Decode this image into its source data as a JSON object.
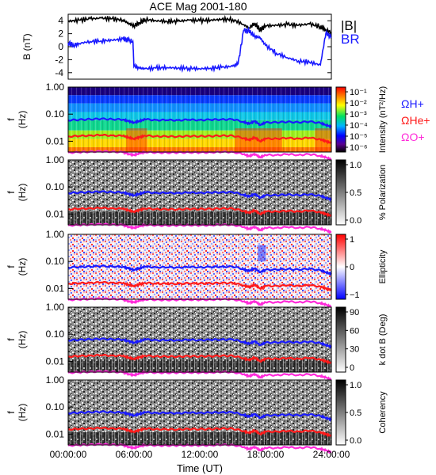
{
  "figure": {
    "title": "ACE Mag 2001-180",
    "xlabel": "Time (UT)",
    "x_ticks": [
      "00:00:00",
      "06:00:00",
      "12:00:00",
      "18:00:00",
      "24:00:00"
    ]
  },
  "colors": {
    "B_total": "#000000",
    "B_R": "#1a1aff",
    "omega_H": "#1a1aff",
    "omega_He": "#ff1a1a",
    "omega_O": "#ff2bd9"
  },
  "chart_data": [
    {
      "type": "line",
      "panel": "B-field",
      "xlabel": "Time (UT)",
      "ylabel": "B (nT)",
      "x_unit": "hours UT",
      "xlim": [
        0,
        24
      ],
      "ylim": [
        -5,
        5
      ],
      "y_ticks": [
        -4,
        -2,
        0,
        2,
        4
      ],
      "legend": [
        "|B|",
        "BR"
      ],
      "series": [
        {
          "name": "|B|",
          "x": [
            0,
            1,
            2,
            3,
            4,
            5,
            5.5,
            6,
            6.5,
            7,
            8,
            9,
            10,
            11,
            12,
            13,
            14,
            15,
            16,
            16.5,
            17,
            17.5,
            18,
            19,
            20,
            21,
            22,
            23,
            23.5,
            24
          ],
          "values": [
            3.9,
            4.1,
            4.3,
            4.4,
            4.3,
            4.1,
            3.6,
            3.2,
            3.7,
            4.2,
            4.0,
            3.9,
            3.9,
            4.1,
            4.0,
            4.1,
            4.2,
            4.2,
            3.4,
            2.9,
            3.6,
            2.6,
            3.2,
            3.3,
            3.4,
            3.3,
            3.5,
            3.1,
            2.6,
            2.2
          ]
        },
        {
          "name": "BR",
          "x": [
            0,
            0.5,
            1,
            2,
            3,
            4,
            5,
            5.5,
            5.9,
            6,
            6.5,
            7,
            8,
            9,
            10,
            11,
            12,
            13,
            14,
            15,
            15.5,
            16,
            16.5,
            17,
            17.5,
            18,
            19,
            20,
            21,
            22,
            23,
            23.5,
            24
          ],
          "values": [
            0.6,
            0.2,
            0.5,
            0.8,
            0.9,
            1.0,
            1.2,
            1.0,
            0.8,
            -3.0,
            -3.3,
            -3.4,
            -3.3,
            -3.2,
            -3.3,
            -3.3,
            -3.4,
            -3.3,
            -3.2,
            -3.0,
            -2.6,
            2.5,
            2.4,
            1.6,
            1.4,
            0.2,
            -1.0,
            -1.7,
            -2.2,
            -2.4,
            -2.8,
            2.1,
            1.5
          ]
        }
      ]
    },
    {
      "type": "heatmap",
      "panel": "Intensity",
      "ylabel": "f (Hz)",
      "y_scale": "log",
      "ylim": [
        0.004,
        1.0
      ],
      "y_ticks": [
        "1.00",
        "0.10",
        "0.01"
      ],
      "colorbar": {
        "label": "Intensity (nT²/Hz)",
        "scale": "log",
        "ticks": [
          "10⁻¹",
          "10⁻²",
          "10⁻³",
          "10⁻⁴",
          "10⁻⁵",
          "10⁻⁶"
        ]
      },
      "legend": [
        "ΩH+",
        "ΩHe+",
        "ΩO+"
      ]
    },
    {
      "type": "heatmap",
      "panel": "Polarization",
      "ylabel": "f (Hz)",
      "y_scale": "log",
      "ylim": [
        0.004,
        1.0
      ],
      "y_ticks": [
        "1.00",
        "0.10",
        "0.01"
      ],
      "colorbar": {
        "label": "% Polarization",
        "ticks": [
          "1.0",
          "0.5",
          "0.0"
        ]
      }
    },
    {
      "type": "heatmap",
      "panel": "Ellipticity",
      "ylabel": "f (Hz)",
      "y_scale": "log",
      "ylim": [
        0.004,
        1.0
      ],
      "y_ticks": [
        "1.00",
        "0.10",
        "0.01"
      ],
      "colorbar": {
        "label": "Ellipticity",
        "ticks": [
          "1",
          "0",
          "−1"
        ]
      }
    },
    {
      "type": "heatmap",
      "panel": "k dot B",
      "ylabel": "f (Hz)",
      "y_scale": "log",
      "ylim": [
        0.004,
        1.0
      ],
      "y_ticks": [
        "1.00",
        "0.10",
        "0.01"
      ],
      "colorbar": {
        "label": "k dot B (Deg)",
        "ticks": [
          "90",
          "60",
          "30",
          "0"
        ]
      }
    },
    {
      "type": "heatmap",
      "panel": "Coherency",
      "ylabel": "f (Hz)",
      "y_scale": "log",
      "ylim": [
        0.004,
        1.0
      ],
      "y_ticks": [
        "1.00",
        "0.10",
        "0.01"
      ],
      "colorbar": {
        "label": "Coherency",
        "ticks": [
          "1.0",
          "0.5",
          "0.0"
        ]
      }
    },
    {
      "type": "line",
      "panel": "gyrofrequencies (overplotted on every spectrogram panel)",
      "y_scale": "log",
      "xlim": [
        0,
        24
      ],
      "series": [
        {
          "name": "ΩH+",
          "x": [
            0,
            1,
            2,
            3,
            4,
            5,
            5.5,
            6,
            6.5,
            7,
            8,
            9,
            10,
            11,
            12,
            13,
            14,
            15,
            16,
            16.5,
            17,
            17.5,
            18,
            19,
            20,
            21,
            22,
            23,
            23.5,
            24
          ],
          "values": [
            0.06,
            0.062,
            0.065,
            0.067,
            0.065,
            0.063,
            0.055,
            0.049,
            0.056,
            0.064,
            0.061,
            0.06,
            0.06,
            0.062,
            0.061,
            0.062,
            0.064,
            0.064,
            0.052,
            0.044,
            0.055,
            0.04,
            0.049,
            0.05,
            0.052,
            0.05,
            0.053,
            0.047,
            0.04,
            0.034
          ]
        },
        {
          "name": "ΩHe+",
          "x": [
            0,
            1,
            2,
            3,
            4,
            5,
            5.5,
            6,
            6.5,
            7,
            8,
            9,
            10,
            11,
            12,
            13,
            14,
            15,
            16,
            16.5,
            17,
            17.5,
            18,
            19,
            20,
            21,
            22,
            23,
            23.5,
            24
          ],
          "values": [
            0.015,
            0.0155,
            0.0163,
            0.0168,
            0.0163,
            0.0158,
            0.0138,
            0.0123,
            0.014,
            0.016,
            0.0153,
            0.015,
            0.015,
            0.0155,
            0.0153,
            0.0155,
            0.016,
            0.016,
            0.013,
            0.011,
            0.0138,
            0.01,
            0.0123,
            0.0125,
            0.013,
            0.0125,
            0.0133,
            0.0118,
            0.01,
            0.0085
          ]
        },
        {
          "name": "ΩO+",
          "x": [
            0,
            1,
            2,
            3,
            4,
            5,
            5.5,
            6,
            6.5,
            7,
            8,
            9,
            10,
            11,
            12,
            13,
            14,
            15,
            16,
            16.5,
            17,
            17.5,
            18,
            19,
            20,
            21,
            22,
            23,
            23.5,
            24
          ],
          "values": [
            0.0038,
            0.0039,
            0.0041,
            0.0042,
            0.0041,
            0.0039,
            0.0034,
            0.0031,
            0.0035,
            0.004,
            0.0038,
            0.0038,
            0.0038,
            0.0039,
            0.0038,
            0.0039,
            0.004,
            0.004,
            0.0033,
            0.0028,
            0.0034,
            0.0025,
            0.0031,
            0.0031,
            0.0033,
            0.0031,
            0.0033,
            0.0029,
            0.0025,
            0.0021
          ]
        }
      ]
    }
  ]
}
